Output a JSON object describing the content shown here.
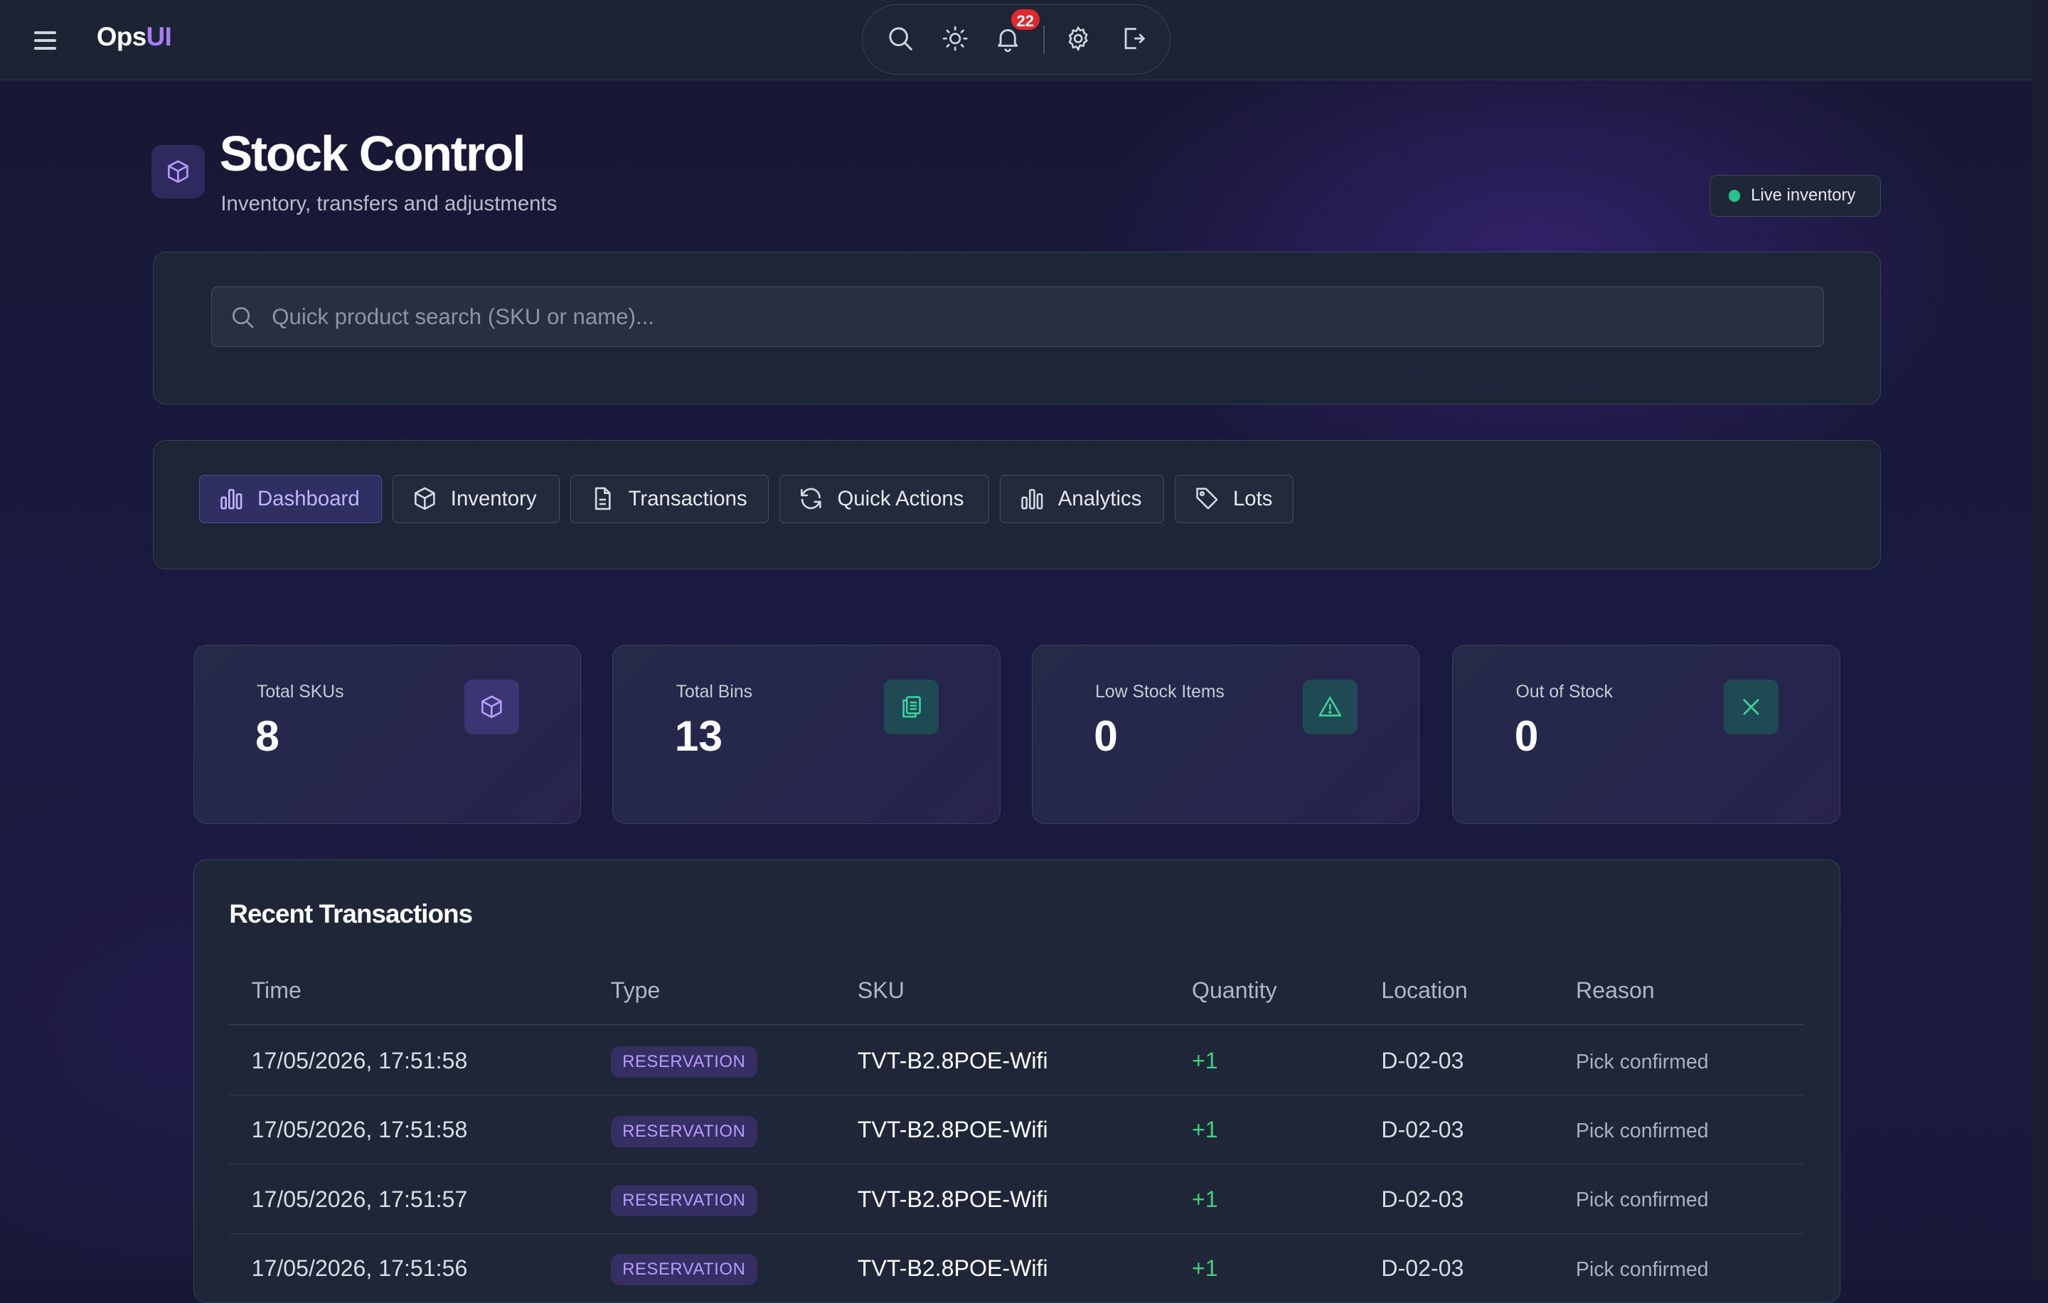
{
  "app": {
    "brand_part1": "Ops",
    "brand_part2": "UI"
  },
  "topbar": {
    "icons": [
      "search-icon",
      "sun-icon",
      "bell-icon",
      "gear-icon",
      "logout-icon"
    ],
    "notification_count": "22"
  },
  "header": {
    "title": "Stock Control",
    "subtitle": "Inventory, transfers and adjustments",
    "status_label": "Live inventory",
    "status_color": "#22c48a"
  },
  "search": {
    "placeholder": "Quick product search (SKU or name)...",
    "value": ""
  },
  "tabs": [
    {
      "label": "Dashboard",
      "icon": "bar-chart-icon",
      "active": true
    },
    {
      "label": "Inventory",
      "icon": "box-icon",
      "active": false
    },
    {
      "label": "Transactions",
      "icon": "document-icon",
      "active": false
    },
    {
      "label": "Quick Actions",
      "icon": "refresh-icon",
      "active": false
    },
    {
      "label": "Analytics",
      "icon": "bar-chart-icon",
      "active": false
    },
    {
      "label": "Lots",
      "icon": "tag-icon",
      "active": false
    }
  ],
  "stats": [
    {
      "label": "Total SKUs",
      "value": "8",
      "icon": "box-icon"
    },
    {
      "label": "Total Bins",
      "value": "13",
      "icon": "clipboard-icon"
    },
    {
      "label": "Low Stock Items",
      "value": "0",
      "icon": "warning-icon"
    },
    {
      "label": "Out of Stock",
      "value": "0",
      "icon": "x-icon"
    }
  ],
  "transactions": {
    "title": "Recent Transactions",
    "columns": [
      "Time",
      "Type",
      "SKU",
      "Quantity",
      "Location",
      "Reason"
    ],
    "rows": [
      {
        "time": "17/05/2026, 17:51:58",
        "type": "RESERVATION",
        "sku": "TVT-B2.8POE-Wifi",
        "quantity": "+1",
        "location": "D-02-03",
        "reason": "Pick confirmed"
      },
      {
        "time": "17/05/2026, 17:51:58",
        "type": "RESERVATION",
        "sku": "TVT-B2.8POE-Wifi",
        "quantity": "+1",
        "location": "D-02-03",
        "reason": "Pick confirmed"
      },
      {
        "time": "17/05/2026, 17:51:57",
        "type": "RESERVATION",
        "sku": "TVT-B2.8POE-Wifi",
        "quantity": "+1",
        "location": "D-02-03",
        "reason": "Pick confirmed"
      },
      {
        "time": "17/05/2026, 17:51:56",
        "type": "RESERVATION",
        "sku": "TVT-B2.8POE-Wifi",
        "quantity": "+1",
        "location": "D-02-03",
        "reason": "Pick confirmed"
      }
    ]
  },
  "colors": {
    "accent": "#a77ef5",
    "positive": "#3fd07c",
    "danger": "#e0282e"
  }
}
